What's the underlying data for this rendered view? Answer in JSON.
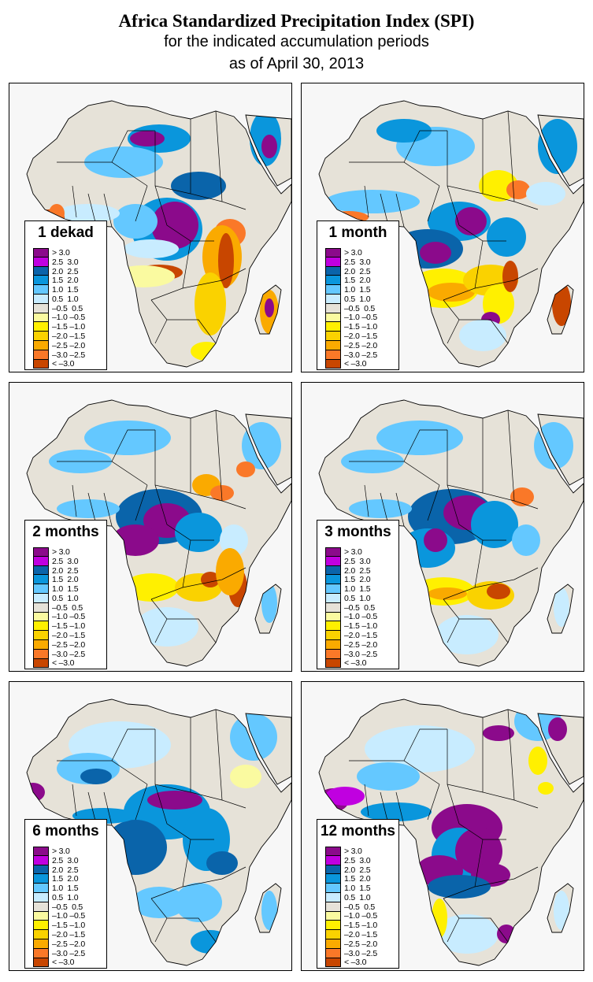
{
  "title": {
    "main": "Africa Standardized Precipitation Index (SPI)",
    "line2": "for the indicated accumulation periods",
    "line3": "as of April 30, 2013"
  },
  "legend": {
    "classes": [
      {
        "label": "> 3.0",
        "color": "#8b0a8b"
      },
      {
        "label": "2.5  3.0",
        "color": "#c000e0"
      },
      {
        "label": "2.0  2.5",
        "color": "#0a64aa"
      },
      {
        "label": "1.5  2.0",
        "color": "#0a96dc"
      },
      {
        "label": "1.0  1.5",
        "color": "#64c8ff"
      },
      {
        "label": "0.5  1.0",
        "color": "#c8ecff"
      },
      {
        "label": "–0.5  0.5",
        "color": "#e6e2d8"
      },
      {
        "label": "–1.0 –0.5",
        "color": "#fafaa0"
      },
      {
        "label": "–1.5 –1.0",
        "color": "#fff000"
      },
      {
        "label": "–2.0 –1.5",
        "color": "#fad200"
      },
      {
        "label": "–2.5 –2.0",
        "color": "#faaa00"
      },
      {
        "label": "–3.0 –2.5",
        "color": "#fa7828"
      },
      {
        "label": "< –3.0",
        "color": "#c84600"
      }
    ]
  },
  "colors": {
    "land_neutral": "#e6e2d8",
    "ocean": "#f7f7f7",
    "border": "#000000"
  },
  "panels": [
    {
      "label": "1 dekad",
      "pattern": "dekad"
    },
    {
      "label": "1 month",
      "pattern": "month1"
    },
    {
      "label": "2 months",
      "pattern": "month2"
    },
    {
      "label": "3 months",
      "pattern": "month3"
    },
    {
      "label": "6 months",
      "pattern": "month6"
    },
    {
      "label": "12 months",
      "pattern": "month12"
    }
  ]
}
